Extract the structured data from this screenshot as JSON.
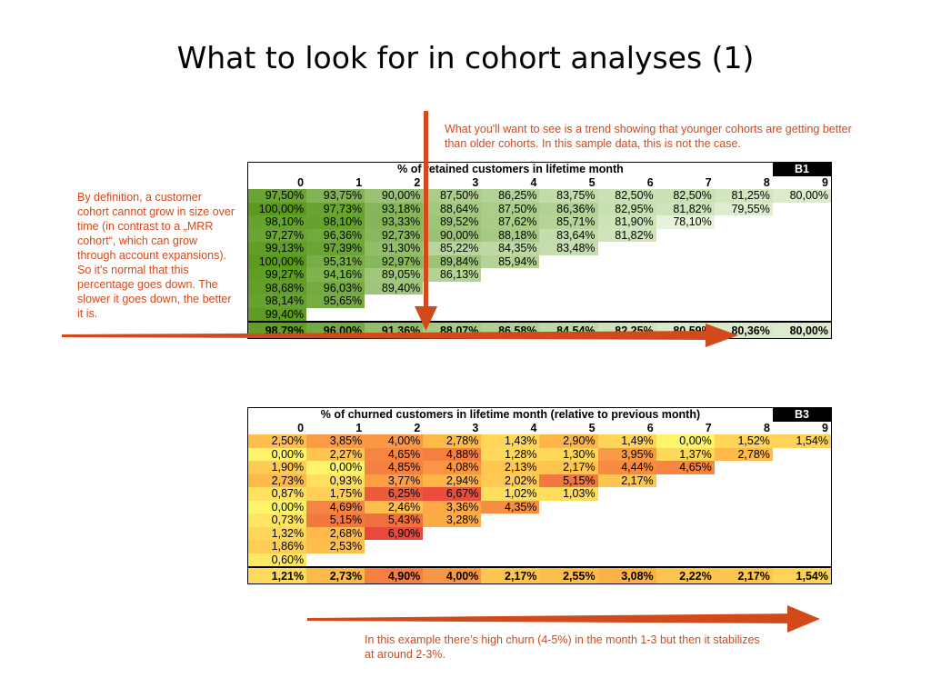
{
  "title": "What to look for in cohort analyses (1)",
  "notes": {
    "top": "What you'll want to see is a trend showing that younger cohorts are getting better than older cohorts. In this sample data, this is not the case.",
    "left": "By definition, a customer cohort cannot grow in size over time (in contrast to a „MRR cohort“, which can grow through account expansions). So it's normal that this percentage goes down. The slower it goes down, the better it is.",
    "bottom": "In this example there’s high churn (4-5%) in the month 1-3 but then it stabilizes at around 2-3%."
  },
  "colors": {
    "annotation": "#d2491c",
    "retention_high": "#5a9a1e",
    "retention_low": "#e8f3dc",
    "churn_high": "#e8453a",
    "churn_low": "#fff56a"
  },
  "retention": {
    "caption": "% of retained customers in lifetime month",
    "badge": "B1",
    "headers": [
      "0",
      "1",
      "2",
      "3",
      "4",
      "5",
      "6",
      "7",
      "8",
      "9"
    ],
    "rows": [
      [
        "97,50%",
        "93,75%",
        "90,00%",
        "87,50%",
        "86,25%",
        "83,75%",
        "82,50%",
        "82,50%",
        "81,25%",
        "80,00%"
      ],
      [
        "100,00%",
        "97,73%",
        "93,18%",
        "88,64%",
        "87,50%",
        "86,36%",
        "82,95%",
        "81,82%",
        "79,55%"
      ],
      [
        "98,10%",
        "98,10%",
        "93,33%",
        "89,52%",
        "87,62%",
        "85,71%",
        "81,90%",
        "78,10%"
      ],
      [
        "97,27%",
        "96,36%",
        "92,73%",
        "90,00%",
        "88,18%",
        "83,64%",
        "81,82%"
      ],
      [
        "99,13%",
        "97,39%",
        "91,30%",
        "85,22%",
        "84,35%",
        "83,48%"
      ],
      [
        "100,00%",
        "95,31%",
        "92,97%",
        "89,84%",
        "85,94%"
      ],
      [
        "99,27%",
        "94,16%",
        "89,05%",
        "86,13%"
      ],
      [
        "98,68%",
        "96,03%",
        "89,40%"
      ],
      [
        "98,14%",
        "95,65%"
      ],
      [
        "99,40%"
      ]
    ],
    "averages": [
      "98,79%",
      "96,00%",
      "91,36%",
      "88,07%",
      "86,58%",
      "84,54%",
      "82,25%",
      "80,59%",
      "80,36%",
      "80,00%"
    ]
  },
  "churn": {
    "caption": "% of churned customers in lifetime month (relative to previous month)",
    "badge": "B3",
    "headers": [
      "0",
      "1",
      "2",
      "3",
      "4",
      "5",
      "6",
      "7",
      "8",
      "9"
    ],
    "rows": [
      [
        "2,50%",
        "3,85%",
        "4,00%",
        "2,78%",
        "1,43%",
        "2,90%",
        "1,49%",
        "0,00%",
        "1,52%",
        "1,54%"
      ],
      [
        "0,00%",
        "2,27%",
        "4,65%",
        "4,88%",
        "1,28%",
        "1,30%",
        "3,95%",
        "1,37%",
        "2,78%"
      ],
      [
        "1,90%",
        "0,00%",
        "4,85%",
        "4,08%",
        "2,13%",
        "2,17%",
        "4,44%",
        "4,65%"
      ],
      [
        "2,73%",
        "0,93%",
        "3,77%",
        "2,94%",
        "2,02%",
        "5,15%",
        "2,17%"
      ],
      [
        "0,87%",
        "1,75%",
        "6,25%",
        "6,67%",
        "1,02%",
        "1,03%"
      ],
      [
        "0,00%",
        "4,69%",
        "2,46%",
        "3,36%",
        "4,35%"
      ],
      [
        "0,73%",
        "5,15%",
        "5,43%",
        "3,28%"
      ],
      [
        "1,32%",
        "2,68%",
        "6,90%"
      ],
      [
        "1,86%",
        "2,53%"
      ],
      [
        "0,60%"
      ]
    ],
    "averages": [
      "1,21%",
      "2,73%",
      "4,90%",
      "4,00%",
      "2,17%",
      "2,55%",
      "3,08%",
      "2,22%",
      "2,17%",
      "1,54%"
    ]
  }
}
